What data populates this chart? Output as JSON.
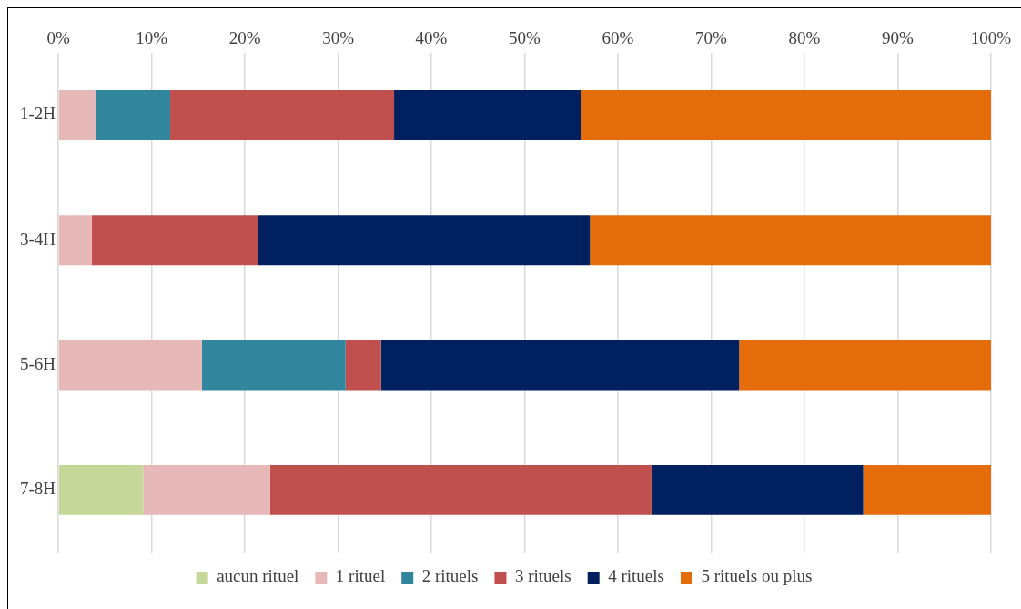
{
  "chart_data": {
    "type": "bar",
    "orientation": "horizontal",
    "stacked": true,
    "categories": [
      "1-2H",
      "3-4H",
      "5-6H",
      "7-8H"
    ],
    "series": [
      {
        "name": "aucun rituel",
        "color": "#c5d89a",
        "values": [
          null,
          null,
          null,
          9.1
        ]
      },
      {
        "name": "1 rituel",
        "color": "#e6b9b8",
        "values": [
          4.0,
          3.6,
          15.4,
          13.6
        ]
      },
      {
        "name": "2 rituels",
        "color": "#31859c",
        "values": [
          8.0,
          null,
          15.4,
          null
        ]
      },
      {
        "name": "3 rituels",
        "color": "#c0504d",
        "values": [
          24.0,
          17.8,
          3.8,
          40.9
        ]
      },
      {
        "name": "4 rituels",
        "color": "#002060",
        "values": [
          20.0,
          35.6,
          38.4,
          22.7
        ]
      },
      {
        "name": "5 rituels ou plus",
        "color": "#e46c0a",
        "values": [
          44.0,
          43.0,
          27.0,
          13.7
        ]
      }
    ],
    "xlim": [
      0,
      100
    ],
    "xticks": [
      {
        "value": 0,
        "label": "0%"
      },
      {
        "value": 10,
        "label": "10%"
      },
      {
        "value": 20,
        "label": "20%"
      },
      {
        "value": 30,
        "label": "30%"
      },
      {
        "value": 40,
        "label": "40%"
      },
      {
        "value": 50,
        "label": "50%"
      },
      {
        "value": 60,
        "label": "60%"
      },
      {
        "value": 70,
        "label": "70%"
      },
      {
        "value": 80,
        "label": "80%"
      },
      {
        "value": 90,
        "label": "90%"
      },
      {
        "value": 100,
        "label": "100%"
      }
    ],
    "grid": "x",
    "legend": "bottom"
  }
}
